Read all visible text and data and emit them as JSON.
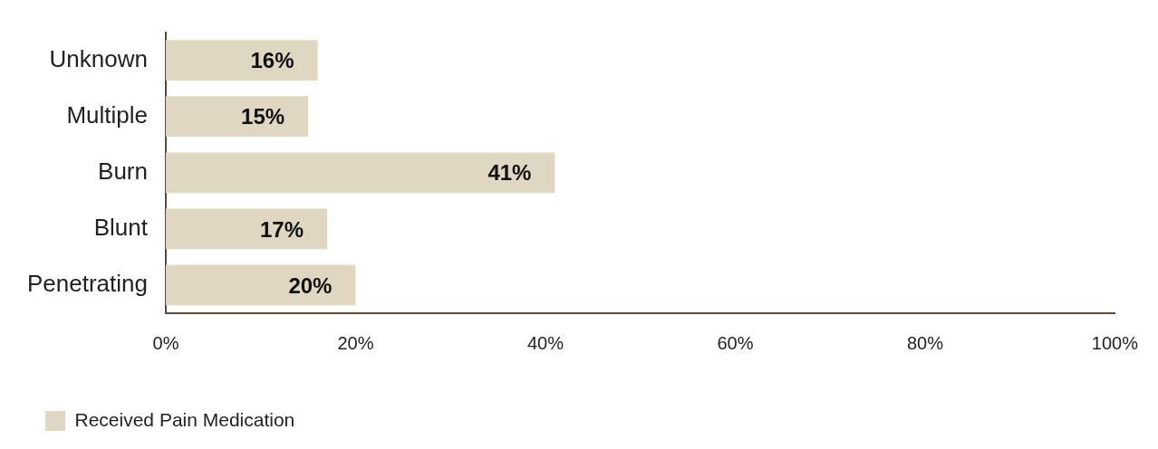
{
  "chart_data": {
    "type": "bar",
    "orientation": "horizontal",
    "categories": [
      "Unknown",
      "Multiple",
      "Burn",
      "Blunt",
      "Penetrating"
    ],
    "series": [
      {
        "name": "Received Pain Medication",
        "color": "#e0d7c3",
        "values": [
          16,
          15,
          41,
          17,
          20
        ],
        "value_labels": [
          "16%",
          "15%",
          "41%",
          "17%",
          "20%"
        ]
      }
    ],
    "xlim": [
      0,
      100
    ],
    "xticks": [
      {
        "value": 0,
        "label": "0%"
      },
      {
        "value": 20,
        "label": "20%"
      },
      {
        "value": 40,
        "label": "40%"
      },
      {
        "value": 60,
        "label": "60%"
      },
      {
        "value": 80,
        "label": "80%"
      },
      {
        "value": 100,
        "label": "100%"
      }
    ],
    "grid": false,
    "legend": "bottom left"
  }
}
